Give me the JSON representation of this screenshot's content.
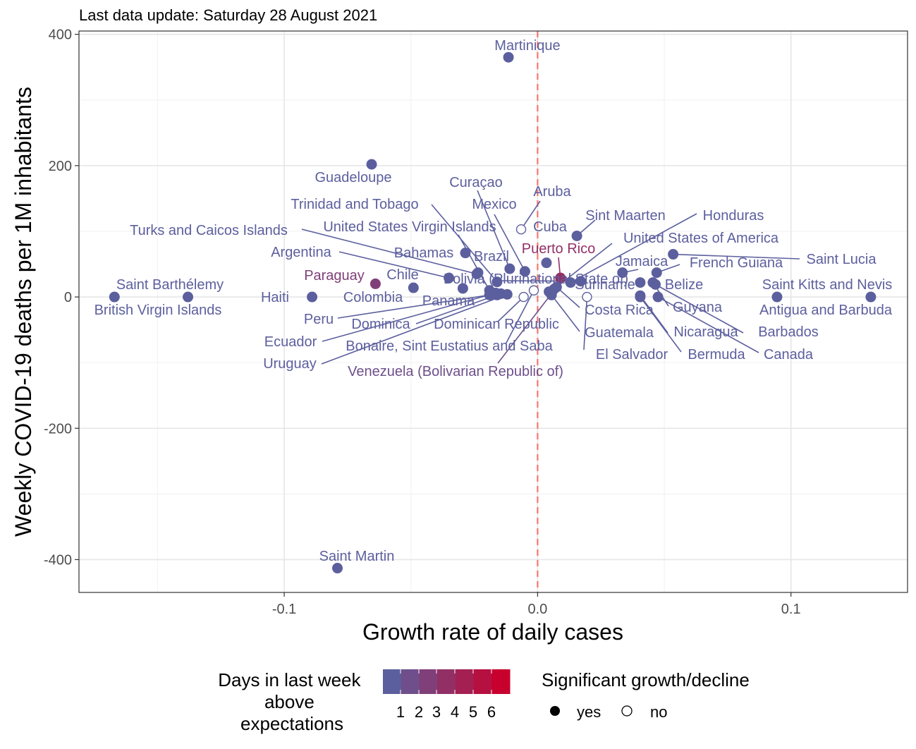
{
  "chart_data": {
    "type": "scatter",
    "subtitle": "Last data update: Saturday 28 August 2021",
    "xlabel": "Growth rate of daily cases",
    "ylabel": "Weekly COVID-19 deaths per 1M inhabitants",
    "xlim": [
      -0.181,
      0.146
    ],
    "ylim": [
      -450,
      405
    ],
    "x_ticks": [
      {
        "value": -0.1,
        "label": "-0.1"
      },
      {
        "value": 0.0,
        "label": "0.0"
      },
      {
        "value": 0.1,
        "label": "0.1"
      }
    ],
    "y_ticks": [
      {
        "value": 400,
        "label": "400"
      },
      {
        "value": 200,
        "label": "200"
      },
      {
        "value": 0,
        "label": "0"
      },
      {
        "value": -200,
        "label": "-200"
      },
      {
        "value": -400,
        "label": "-400"
      }
    ],
    "vline": {
      "x": 0,
      "color": "#f8766d",
      "dashed": true
    },
    "grid": true,
    "color_low": "#5c5f9e",
    "color_high": "#c8002d",
    "points": [
      {
        "name": "Martinique",
        "x": -0.0115,
        "y": 365,
        "days": 0,
        "significant": true
      },
      {
        "name": "Guadeloupe",
        "x": -0.0655,
        "y": 202,
        "days": 0,
        "significant": true
      },
      {
        "name": "Saint Martin",
        "x": -0.079,
        "y": -413,
        "days": 0,
        "significant": true
      },
      {
        "name": "Saint Barthélemy",
        "x": -0.167,
        "y": 0,
        "days": 0,
        "significant": true
      },
      {
        "name": "British Virgin Islands",
        "x": -0.138,
        "y": 0,
        "days": 0,
        "significant": true
      },
      {
        "name": "Haiti",
        "x": -0.089,
        "y": 0,
        "days": 0,
        "significant": true
      },
      {
        "name": "Paraguay",
        "x": -0.064,
        "y": 20,
        "days": 2,
        "significant": true
      },
      {
        "name": "Colombia",
        "x": -0.049,
        "y": 14,
        "days": 0,
        "significant": true
      },
      {
        "name": "Argentina",
        "x": -0.035,
        "y": 29,
        "days": 0,
        "significant": true
      },
      {
        "name": "Turks and Caicos Islands",
        "x": -0.024,
        "y": 35,
        "days": 0,
        "significant": true
      },
      {
        "name": "Trinidad and Tobago",
        "x": -0.016,
        "y": 23,
        "days": 0,
        "significant": true
      },
      {
        "name": "Bahamas",
        "x": -0.0285,
        "y": 67,
        "days": 0,
        "significant": true
      },
      {
        "name": "Chile",
        "x": -0.0295,
        "y": 13,
        "days": 0,
        "significant": true
      },
      {
        "name": "Brazil",
        "x": -0.0235,
        "y": 37,
        "days": 0,
        "significant": true
      },
      {
        "name": "Mexico",
        "x": -0.005,
        "y": 39,
        "days": 0,
        "significant": true
      },
      {
        "name": "Curaçao",
        "x": -0.011,
        "y": 43,
        "days": 0,
        "significant": true
      },
      {
        "name": "United States Virgin Islands",
        "x": -0.019,
        "y": 10,
        "days": 0,
        "significant": true
      },
      {
        "name": "Bolivia (Plurinational State of)",
        "x": 0.017,
        "y": 24,
        "days": 0,
        "significant": true
      },
      {
        "name": "Panama",
        "x": -0.016,
        "y": 3,
        "days": 0,
        "significant": true
      },
      {
        "name": "Peru",
        "x": -0.019,
        "y": 3,
        "days": 0,
        "significant": true
      },
      {
        "name": "Ecuador",
        "x": -0.0165,
        "y": 6,
        "days": 0,
        "significant": true
      },
      {
        "name": "Uruguay",
        "x": -0.012,
        "y": 4,
        "days": 0,
        "significant": true
      },
      {
        "name": "Dominica",
        "x": -0.0145,
        "y": 5,
        "days": 0,
        "significant": true
      },
      {
        "name": "Dominican Republic",
        "x": -0.0055,
        "y": 0,
        "days": 0,
        "significant": false
      },
      {
        "name": "Bonaire, Sint Eustatius and Saba",
        "x": -0.0015,
        "y": 10,
        "days": 0,
        "significant": false
      },
      {
        "name": "Venezuela (Bolivarian Republic of)",
        "x": 0.0055,
        "y": 5,
        "days": 1,
        "significant": true
      },
      {
        "name": "Aruba",
        "x": -0.0065,
        "y": 103,
        "days": 0,
        "significant": false
      },
      {
        "name": "Cuba",
        "x": 0.0035,
        "y": 52,
        "days": 0,
        "significant": true
      },
      {
        "name": "Puerto Rico",
        "x": 0.009,
        "y": 29,
        "days": 3,
        "significant": true
      },
      {
        "name": "Sint Maarten",
        "x": 0.0155,
        "y": 93,
        "days": 0,
        "significant": true
      },
      {
        "name": "Honduras",
        "x": 0.013,
        "y": 22,
        "days": 0,
        "significant": true
      },
      {
        "name": "United States of America",
        "x": 0.0065,
        "y": 12,
        "days": 0,
        "significant": true
      },
      {
        "name": "Suriname",
        "x": 0.0045,
        "y": 8,
        "days": 0,
        "significant": true
      },
      {
        "name": "Costa Rica",
        "x": 0.0075,
        "y": 15,
        "days": 0,
        "significant": true
      },
      {
        "name": "Guatemala",
        "x": 0.0055,
        "y": 3,
        "days": 0,
        "significant": true
      },
      {
        "name": "El Salvador",
        "x": 0.0195,
        "y": 0,
        "days": 0,
        "significant": false
      },
      {
        "name": "Jamaica",
        "x": 0.0335,
        "y": 37,
        "days": 0,
        "significant": true
      },
      {
        "name": "French Guiana",
        "x": 0.047,
        "y": 37,
        "days": 0,
        "significant": true
      },
      {
        "name": "Saint Lucia",
        "x": 0.0535,
        "y": 65,
        "days": 0,
        "significant": true
      },
      {
        "name": "Belize",
        "x": 0.0405,
        "y": 22,
        "days": 0,
        "significant": true
      },
      {
        "name": "Guyana",
        "x": 0.0455,
        "y": 22,
        "days": 0,
        "significant": true
      },
      {
        "name": "Nicaragua",
        "x": 0.0405,
        "y": 2,
        "days": 0,
        "significant": true
      },
      {
        "name": "Barbados",
        "x": 0.0465,
        "y": 19,
        "days": 0,
        "significant": true
      },
      {
        "name": "Bermuda",
        "x": 0.0405,
        "y": 0,
        "days": 0,
        "significant": true
      },
      {
        "name": "Canada",
        "x": 0.0475,
        "y": 0,
        "days": 0,
        "significant": true
      },
      {
        "name": "Saint Kitts and Nevis",
        "x": 0.0945,
        "y": 0,
        "days": 0,
        "significant": true
      },
      {
        "name": "Antigua and Barbuda",
        "x": 0.1315,
        "y": 0,
        "days": 0,
        "significant": true
      }
    ],
    "legend": {
      "color_title": "Days in last week above expectations",
      "color_title_lines": [
        "Days in last week",
        "above",
        "expectations"
      ],
      "color_ticks": [
        "1",
        "2",
        "3",
        "4",
        "5",
        "6"
      ],
      "shape_title": "Significant growth/decline",
      "shape_items": [
        "yes",
        "no"
      ],
      "placement": "bottom"
    }
  }
}
